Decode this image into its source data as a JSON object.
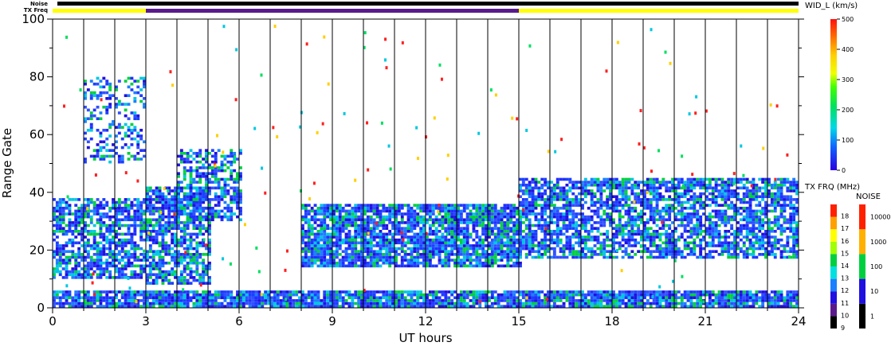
{
  "chart_data": {
    "type": "heatmap",
    "xlabel": "UT hours",
    "ylabel": "Range Gate",
    "xlim": [
      0,
      24
    ],
    "ylim": [
      0,
      100
    ],
    "x_ticks": [
      "0",
      "3",
      "6",
      "9",
      "12",
      "15",
      "18",
      "21",
      "24"
    ],
    "y_ticks": [
      "0",
      "20",
      "40",
      "60",
      "80",
      "100"
    ],
    "noise_label": "Noise",
    "txfreq_label": "TX Freq",
    "tx_freq_bar": [
      {
        "from": 0,
        "to": 3,
        "color": "#ffff00"
      },
      {
        "from": 3,
        "to": 15,
        "color": "#5a1a8c"
      },
      {
        "from": 15,
        "to": 24,
        "color": "#ffff00"
      }
    ],
    "colorbar_main": {
      "title": "WID_L (km/s)",
      "ticks": [
        "0",
        "100",
        "200",
        "300",
        "400",
        "500"
      ],
      "range": [
        0,
        500
      ]
    },
    "colorbar_txfreq": {
      "title": "TX FRQ (MHz)",
      "labels": [
        "9",
        "10",
        "11",
        "12",
        "13",
        "14",
        "15",
        "16",
        "17",
        "18"
      ],
      "colors": [
        "#000000",
        "#5a1a8c",
        "#2010e0",
        "#1a80ff",
        "#00e0e0",
        "#00d040",
        "#a0ff00",
        "#ffff00",
        "#ffa000",
        "#ff2000"
      ]
    },
    "colorbar_noise": {
      "title": "NOISE",
      "labels": [
        "1",
        "10",
        "100",
        "1000",
        "10000"
      ],
      "colors": [
        "#000000",
        "#2010e0",
        "#00d040",
        "#ffb000",
        "#ff2000"
      ]
    },
    "scatter_bands": [
      {
        "x": [
          0,
          3
        ],
        "y": [
          10,
          38
        ],
        "density": 0.7
      },
      {
        "x": [
          3,
          5
        ],
        "y": [
          8,
          42
        ],
        "density": 0.75
      },
      {
        "x": [
          4,
          6
        ],
        "y": [
          30,
          55
        ],
        "density": 0.6
      },
      {
        "x": [
          8,
          15
        ],
        "y": [
          14,
          36
        ],
        "density": 0.85
      },
      {
        "x": [
          15,
          24
        ],
        "y": [
          17,
          45
        ],
        "density": 0.7
      },
      {
        "x": [
          0,
          24
        ],
        "y": [
          0,
          6
        ],
        "density": 0.9
      },
      {
        "x": [
          1,
          3
        ],
        "y": [
          50,
          80
        ],
        "density": 0.3
      }
    ]
  }
}
